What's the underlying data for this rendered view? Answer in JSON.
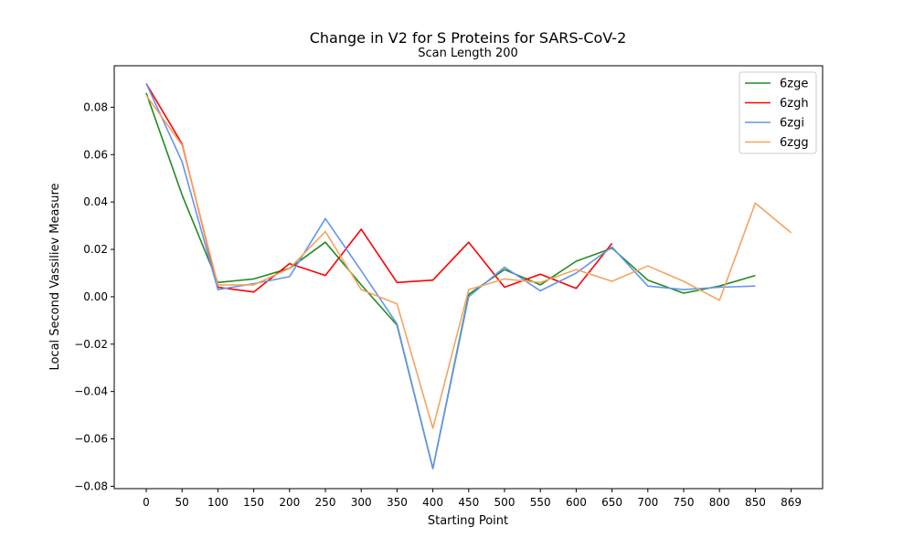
{
  "chart_data": {
    "type": "line",
    "title": "Change in V2 for S Proteins for SARS-CoV-2",
    "subtitle": "Scan Length 200",
    "xlabel": "Starting Point",
    "ylabel": "Local Second Vassiliev Measure",
    "x_ticks": [
      "0",
      "50",
      "100",
      "150",
      "200",
      "250",
      "300",
      "350",
      "400",
      "450",
      "500",
      "550",
      "600",
      "650",
      "700",
      "750",
      "800",
      "850",
      "869"
    ],
    "y_ticks": [
      "−0.08",
      "−0.06",
      "−0.04",
      "−0.02",
      "0.00",
      "0.02",
      "0.04",
      "0.06",
      "0.08"
    ],
    "ylim": [
      -0.081,
      0.0975
    ],
    "grid": false,
    "legend_position": "upper right",
    "series": [
      {
        "name": "6zge",
        "color": "#228b22",
        "values": [
          0.086,
          0.043,
          0.006,
          0.0075,
          0.012,
          0.023,
          0.005,
          -0.012,
          -0.0725,
          0.001,
          0.0115,
          0.005,
          0.015,
          0.0205,
          0.007,
          0.0015,
          0.0045,
          0.009,
          null
        ]
      },
      {
        "name": "6zgh",
        "color": "#ff0000",
        "values": [
          0.09,
          0.0645,
          0.004,
          0.002,
          0.014,
          0.009,
          0.0285,
          0.006,
          0.007,
          0.023,
          0.004,
          0.0095,
          0.0035,
          0.0225,
          null,
          null,
          null,
          null,
          null
        ]
      },
      {
        "name": "6zgi",
        "color": "#6495ed",
        "values": [
          0.09,
          0.057,
          0.003,
          0.0055,
          0.0085,
          0.033,
          0.011,
          -0.0115,
          -0.0725,
          0.0,
          0.0125,
          0.0025,
          0.01,
          0.021,
          0.0045,
          0.003,
          0.004,
          0.0045,
          null
        ]
      },
      {
        "name": "6zgg",
        "color": "#f4a460",
        "values": [
          0.085,
          0.064,
          0.005,
          0.005,
          0.012,
          0.0275,
          0.003,
          -0.003,
          -0.0555,
          0.003,
          0.0075,
          0.006,
          0.0115,
          0.0065,
          0.013,
          0.0065,
          -0.0015,
          0.0395,
          0.027
        ]
      }
    ]
  }
}
